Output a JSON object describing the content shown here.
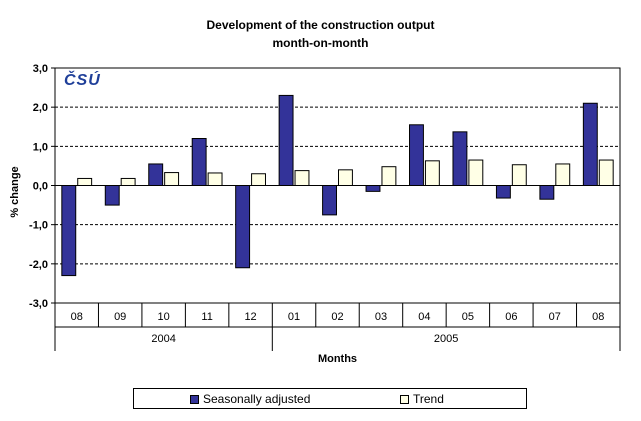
{
  "chart_data": {
    "type": "bar",
    "title": "Development of the construction output",
    "subtitle": "month-on-month",
    "ylabel": "% change",
    "xlabel": "Months",
    "ylim": [
      -3,
      3
    ],
    "yticks": [
      "-3,0",
      "-2,0",
      "-1,0",
      "0,0",
      "1,0",
      "2,0",
      "3,0"
    ],
    "ytick_values": [
      -3,
      -2,
      -1,
      0,
      1,
      2,
      3
    ],
    "categories": [
      "08",
      "09",
      "10",
      "11",
      "12",
      "01",
      "02",
      "03",
      "04",
      "05",
      "06",
      "07",
      "08"
    ],
    "year_groups": [
      {
        "label": "2004",
        "count": 5
      },
      {
        "label": "2005",
        "count": 8
      }
    ],
    "series": [
      {
        "name": "Seasonally adjusted",
        "color": "#333399",
        "values": [
          -2.3,
          -0.5,
          0.55,
          1.2,
          -2.1,
          2.3,
          -0.75,
          -0.15,
          1.55,
          1.37,
          -0.32,
          -0.35,
          2.1
        ]
      },
      {
        "name": "Trend",
        "color": "#ffffe6",
        "values": [
          0.18,
          0.18,
          0.33,
          0.32,
          0.3,
          0.38,
          0.4,
          0.48,
          0.63,
          0.65,
          0.53,
          0.55,
          0.65
        ]
      }
    ],
    "grid": true,
    "legend_position": "bottom"
  },
  "logo_text": "ČSÚ"
}
